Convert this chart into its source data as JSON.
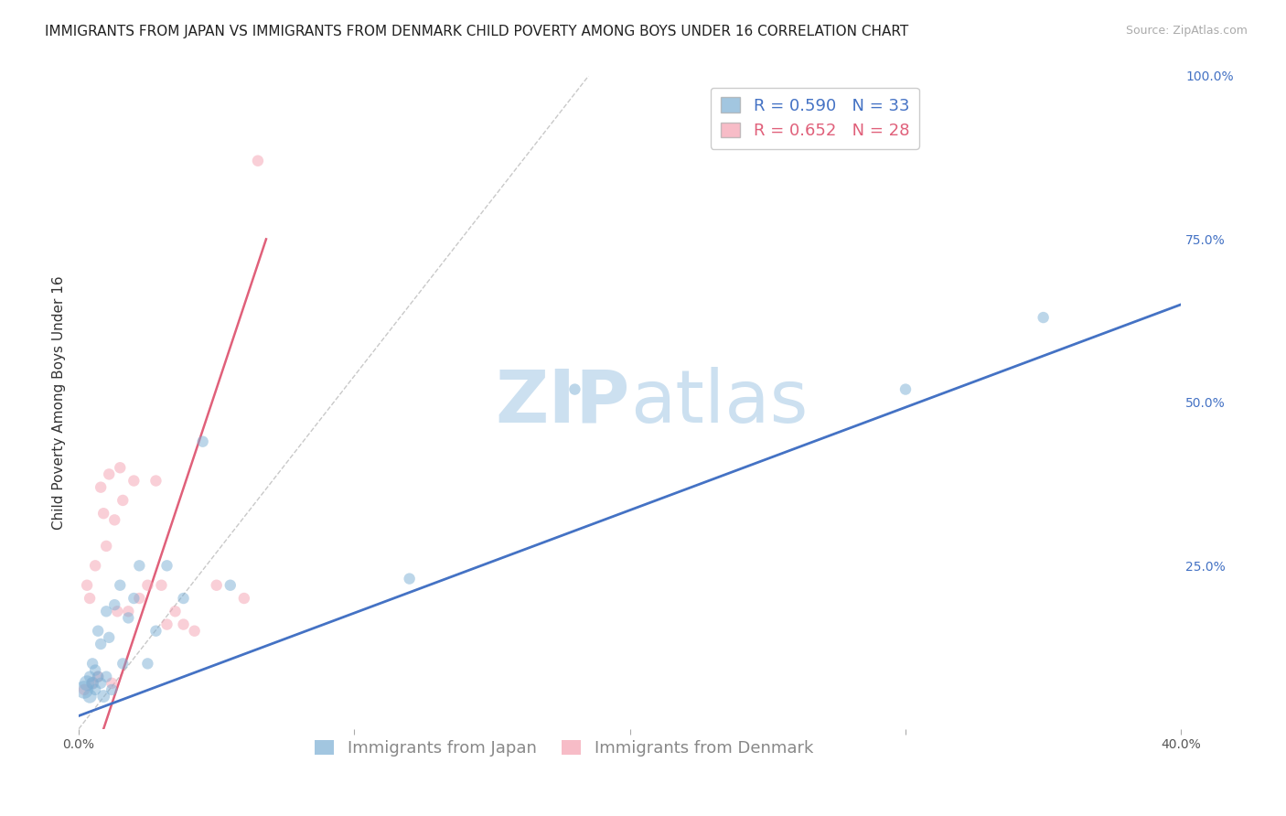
{
  "title": "IMMIGRANTS FROM JAPAN VS IMMIGRANTS FROM DENMARK CHILD POVERTY AMONG BOYS UNDER 16 CORRELATION CHART",
  "source": "Source: ZipAtlas.com",
  "ylabel": "Child Poverty Among Boys Under 16",
  "xlim": [
    0.0,
    0.4
  ],
  "ylim": [
    0.0,
    1.0
  ],
  "xticks": [
    0.0,
    0.1,
    0.2,
    0.3,
    0.4
  ],
  "xticklabels": [
    "0.0%",
    "",
    "",
    "",
    "40.0%"
  ],
  "yticks_right": [
    0.0,
    0.25,
    0.5,
    0.75,
    1.0
  ],
  "yticklabels_right": [
    "",
    "25.0%",
    "50.0%",
    "75.0%",
    "100.0%"
  ],
  "japan_color": "#7bafd4",
  "denmark_color": "#f4a0b0",
  "japan_R": 0.59,
  "japan_N": 33,
  "denmark_R": 0.652,
  "denmark_N": 28,
  "japan_scatter_x": [
    0.002,
    0.003,
    0.004,
    0.004,
    0.005,
    0.005,
    0.006,
    0.006,
    0.007,
    0.007,
    0.008,
    0.008,
    0.009,
    0.01,
    0.01,
    0.011,
    0.012,
    0.013,
    0.015,
    0.016,
    0.018,
    0.02,
    0.022,
    0.025,
    0.028,
    0.032,
    0.038,
    0.045,
    0.055,
    0.12,
    0.18,
    0.3,
    0.35
  ],
  "japan_scatter_y": [
    0.06,
    0.07,
    0.05,
    0.08,
    0.07,
    0.1,
    0.06,
    0.09,
    0.08,
    0.15,
    0.07,
    0.13,
    0.05,
    0.08,
    0.18,
    0.14,
    0.06,
    0.19,
    0.22,
    0.1,
    0.17,
    0.2,
    0.25,
    0.1,
    0.15,
    0.25,
    0.2,
    0.44,
    0.22,
    0.23,
    0.52,
    0.52,
    0.63
  ],
  "japan_scatter_size": [
    200,
    150,
    120,
    80,
    100,
    80,
    80,
    80,
    80,
    80,
    80,
    80,
    100,
    80,
    80,
    80,
    80,
    80,
    80,
    80,
    80,
    80,
    80,
    80,
    80,
    80,
    80,
    80,
    80,
    80,
    80,
    80,
    80
  ],
  "denmark_scatter_x": [
    0.002,
    0.003,
    0.004,
    0.005,
    0.006,
    0.007,
    0.008,
    0.009,
    0.01,
    0.011,
    0.012,
    0.013,
    0.014,
    0.015,
    0.016,
    0.018,
    0.02,
    0.022,
    0.025,
    0.028,
    0.03,
    0.032,
    0.035,
    0.038,
    0.042,
    0.05,
    0.06,
    0.065
  ],
  "denmark_scatter_y": [
    0.06,
    0.22,
    0.2,
    0.07,
    0.25,
    0.08,
    0.37,
    0.33,
    0.28,
    0.39,
    0.07,
    0.32,
    0.18,
    0.4,
    0.35,
    0.18,
    0.38,
    0.2,
    0.22,
    0.38,
    0.22,
    0.16,
    0.18,
    0.16,
    0.15,
    0.22,
    0.2,
    0.87
  ],
  "denmark_scatter_size": [
    80,
    80,
    80,
    80,
    80,
    80,
    80,
    80,
    80,
    80,
    80,
    80,
    80,
    80,
    80,
    80,
    80,
    80,
    80,
    80,
    80,
    80,
    80,
    80,
    80,
    80,
    80,
    80
  ],
  "japan_line_x": [
    0.0,
    0.4
  ],
  "japan_line_y": [
    0.02,
    0.65
  ],
  "denmark_line_x": [
    0.009,
    0.068
  ],
  "denmark_line_y": [
    0.0,
    0.75
  ],
  "diagonal_line_x": [
    0.0,
    0.185
  ],
  "diagonal_line_y": [
    0.0,
    1.0
  ],
  "watermark_zip": "ZIP",
  "watermark_atlas": "atlas",
  "watermark_color": "#cce0f0",
  "legend_japan_label": "Immigrants from Japan",
  "legend_denmark_label": "Immigrants from Denmark",
  "title_fontsize": 11,
  "axis_label_fontsize": 11,
  "tick_fontsize": 10,
  "legend_fontsize": 13,
  "background_color": "#ffffff",
  "grid_color": "#d8d8d8",
  "japan_line_color": "#4472c4",
  "denmark_line_color": "#e0607a",
  "diagonal_color": "#bbbbbb",
  "right_tick_color": "#4472c4"
}
